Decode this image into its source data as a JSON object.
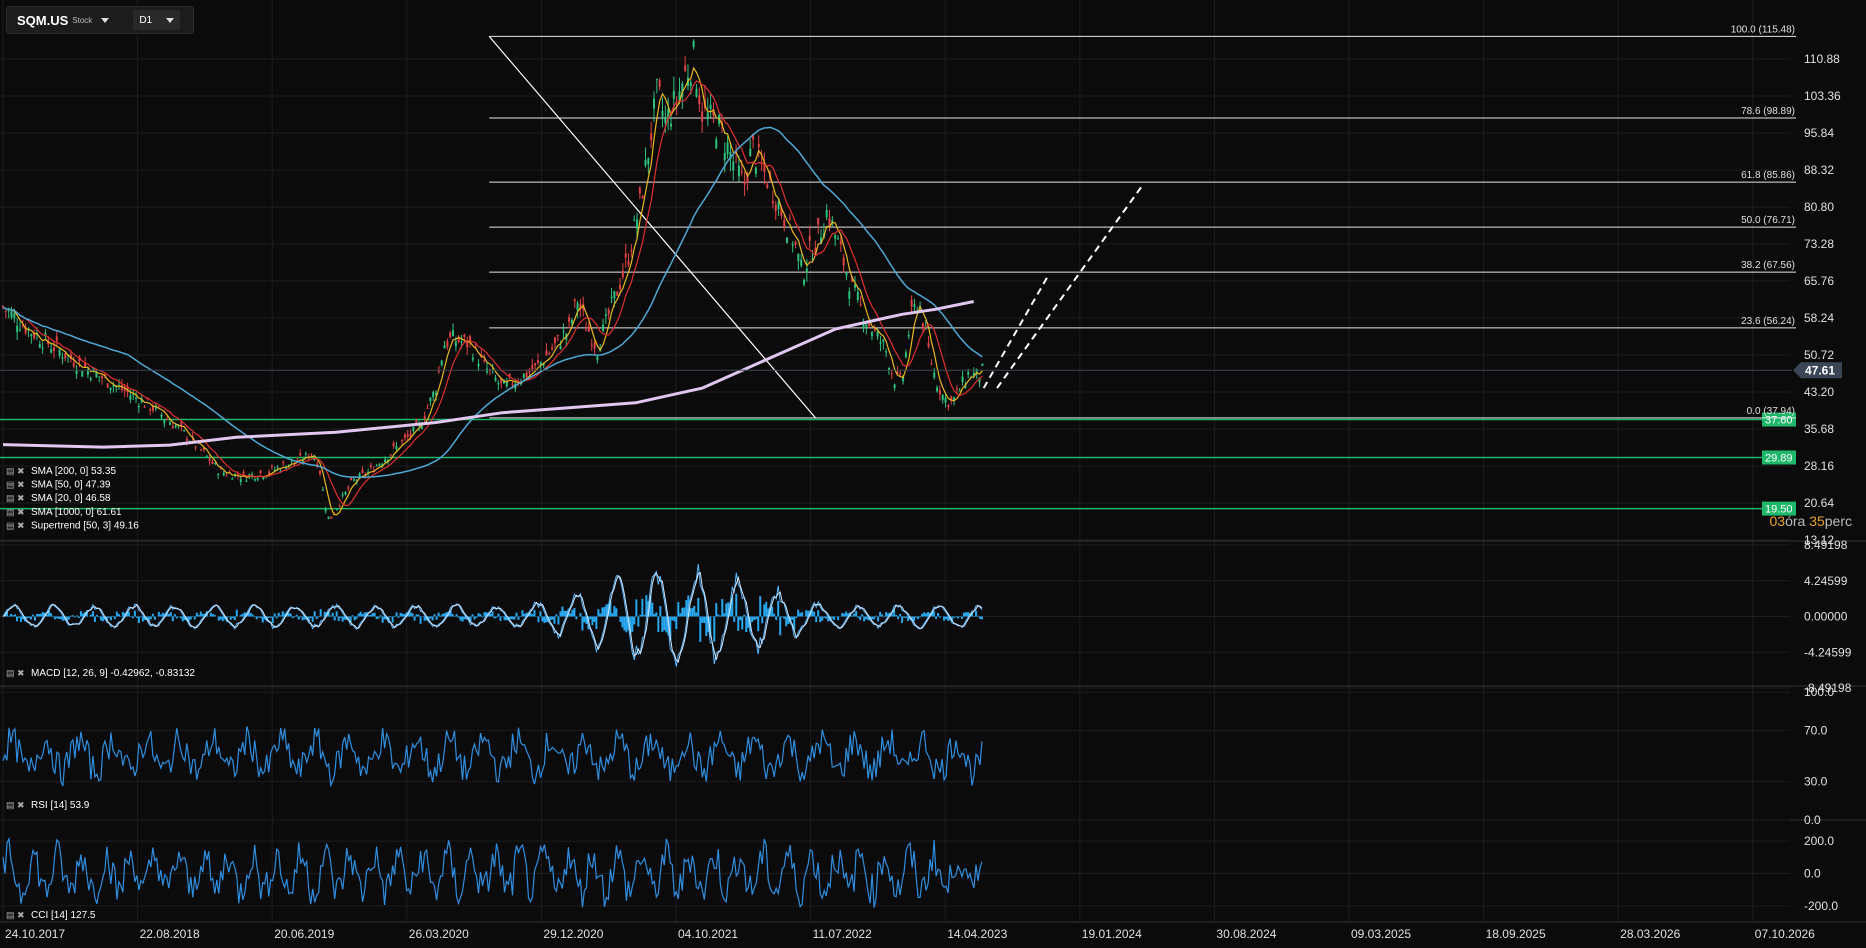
{
  "toolbar": {
    "symbol": "SQM.US",
    "symbol_type": "Stock",
    "timeframe": "D1"
  },
  "countdown": {
    "h": "03",
    "h_unit": "óra",
    "m": "35",
    "m_unit": "perc"
  },
  "colors": {
    "bg": "#0b0b0b",
    "grid": "#1d1d1d",
    "sma200": "#4fa8d6",
    "sma1000": "#e0c6f0",
    "sma50": "#e03030",
    "sma20": "#e8b820",
    "support": "#1fb86a",
    "osc": "#2f8ee0",
    "macd_hist": "#28a8f0",
    "fib": "#e6e6e6",
    "price_badge": "#3a4655"
  },
  "chart_data": {
    "type": "candlestick",
    "symbol": "SQM.US",
    "x_tick_labels": [
      "24.10.2017",
      "22.08.2018",
      "20.06.2019",
      "26.03.2020",
      "29.12.2020",
      "04.10.2021",
      "11.07.2022",
      "14.04.2023",
      "19.01.2024",
      "30.08.2024",
      "09.03.2025",
      "18.09.2025",
      "28.03.2026",
      "07.10.2026"
    ],
    "price_ticks": [
      "110.88",
      "103.36",
      "95.84",
      "88.32",
      "80.80",
      "73.28",
      "65.76",
      "58.24",
      "50.72",
      "43.20",
      "35.68",
      "28.16",
      "20.64",
      "13.12"
    ],
    "price_ylim": [
      13.12,
      118.4
    ],
    "last_price": "47.61",
    "fibonacci": [
      {
        "label": "100.0 (115.48)",
        "value": 115.48
      },
      {
        "label": "78.6 (98.89)",
        "value": 98.89
      },
      {
        "label": "61.8 (85.86)",
        "value": 85.86
      },
      {
        "label": "50.0 (76.71)",
        "value": 76.71
      },
      {
        "label": "38.2 (67.56)",
        "value": 67.56
      },
      {
        "label": "23.6 (56.24)",
        "value": 56.24
      },
      {
        "label": "0.0 (37.94)",
        "value": 37.94
      }
    ],
    "support_levels": [
      "37.60",
      "29.89",
      "19.50"
    ],
    "price_path": [
      [
        0,
        60.5
      ],
      [
        1.5,
        56
      ],
      [
        3,
        52.5
      ],
      [
        5,
        48
      ],
      [
        7,
        44
      ],
      [
        9,
        40
      ],
      [
        10.5,
        36
      ],
      [
        12,
        31
      ],
      [
        13,
        27
      ],
      [
        14.5,
        26
      ],
      [
        16,
        27
      ],
      [
        17,
        28.5
      ],
      [
        18,
        29.5
      ],
      [
        18.6,
        31
      ],
      [
        19,
        28
      ],
      [
        19.3,
        21
      ],
      [
        19.6,
        17
      ],
      [
        20.1,
        20
      ],
      [
        21,
        25
      ],
      [
        22,
        27
      ],
      [
        23,
        30
      ],
      [
        24,
        33
      ],
      [
        25,
        36
      ],
      [
        26,
        44
      ],
      [
        26.5,
        53
      ],
      [
        27,
        54
      ],
      [
        28,
        53
      ],
      [
        29,
        48
      ],
      [
        30,
        44
      ],
      [
        31,
        46
      ],
      [
        32,
        48
      ],
      [
        33,
        52
      ],
      [
        34,
        56
      ],
      [
        34.5,
        62
      ],
      [
        35,
        57
      ],
      [
        35.7,
        52
      ],
      [
        36.5,
        60
      ],
      [
        37.5,
        70
      ],
      [
        38.3,
        82
      ],
      [
        38.8,
        93
      ],
      [
        39.3,
        104
      ],
      [
        39.8,
        98
      ],
      [
        40.5,
        103
      ],
      [
        41,
        108
      ],
      [
        41.5,
        111
      ],
      [
        42,
        100
      ],
      [
        43,
        97
      ],
      [
        44,
        89
      ],
      [
        44.5,
        85
      ],
      [
        45,
        93
      ],
      [
        45.5,
        89
      ],
      [
        46,
        86
      ],
      [
        47,
        78
      ],
      [
        47.5,
        74
      ],
      [
        48,
        67
      ],
      [
        48.5,
        72
      ],
      [
        49,
        75
      ],
      [
        49.5,
        80
      ],
      [
        50,
        75
      ],
      [
        51,
        64
      ],
      [
        52,
        57
      ],
      [
        53,
        52
      ],
      [
        53.5,
        46
      ],
      [
        54,
        45
      ],
      [
        54.5,
        58
      ],
      [
        55,
        62
      ],
      [
        55.5,
        53
      ],
      [
        56,
        46
      ],
      [
        56.5,
        42
      ],
      [
        57,
        41
      ],
      [
        57.5,
        44
      ],
      [
        58,
        47
      ],
      [
        58.5,
        46.5
      ],
      [
        58.9,
        47.61
      ]
    ],
    "supertrend": {
      "label": "Supertrend [50, 3]",
      "value": "49.16"
    },
    "moving_averages": [
      {
        "label": "SMA [200, 0]",
        "value": "53.35",
        "color": "#4fa8d6"
      },
      {
        "label": "SMA [50, 0]",
        "value": "47.39",
        "color": "#e03030"
      },
      {
        "label": "SMA [20, 0]",
        "value": "46.58",
        "color": "#e8b820"
      },
      {
        "label": "SMA [1000, 0]",
        "value": "61.61",
        "color": "#e0c6f0"
      }
    ],
    "macd": {
      "label": "MACD [12, 26, 9]",
      "value": "-0.42962, -0.83132",
      "ticks": [
        "8.49198",
        "4.24599",
        "0.00000",
        "-4.24599",
        "-8.49198"
      ],
      "ylim": [
        -8.49198,
        8.49198
      ]
    },
    "rsi": {
      "label": "RSI [14]",
      "value": "53.9",
      "ticks": [
        "100.0",
        "70.0",
        "30.0",
        "0.0"
      ],
      "ylim": [
        0,
        100
      ]
    },
    "cci": {
      "label": "CCI [14]",
      "value": "127.5",
      "ticks": [
        "200.0",
        "0.0",
        "-200.0"
      ],
      "ylim": [
        -300,
        300
      ]
    }
  }
}
